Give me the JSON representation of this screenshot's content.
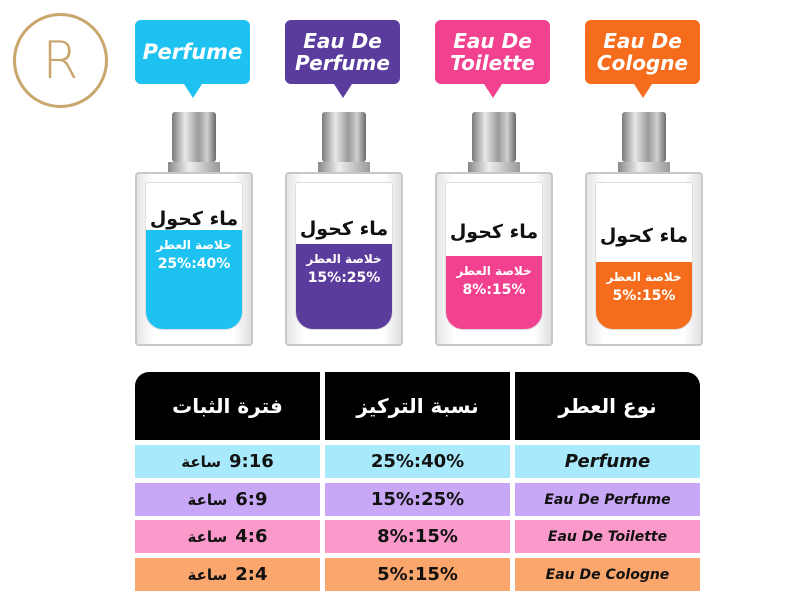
{
  "logo": {
    "letter": "R",
    "color": "#c9a66b"
  },
  "bottles": [
    {
      "type": "Perfume",
      "color": "#1ec2f0",
      "alcohol": "ماء كحول",
      "essence": "خلاصة العطر",
      "percent": "25%:40%",
      "fill": 0.4
    },
    {
      "type": "Eau De Perfume",
      "color": "#5a3c9c",
      "alcohol": "ماء كحول",
      "essence": "خلاصة العطر",
      "percent": "15%:25%",
      "fill": 0.3
    },
    {
      "type": "Eau De Toilette",
      "color": "#f2428f",
      "alcohol": "ماء كحول",
      "essence": "خلاصة العطر",
      "percent": "8%:15%",
      "fill": 0.22
    },
    {
      "type": "Eau De Cologne",
      "color": "#f46c1c",
      "alcohol": "ماء كحول",
      "essence": "خلاصة العطر",
      "percent": "5%:15%",
      "fill": 0.18
    }
  ],
  "table": {
    "headers": [
      "نوع العطر",
      "نسبة التركيز",
      "فترة الثبات"
    ],
    "rows": [
      {
        "type": "Perfume",
        "concentration": "25%:40%",
        "duration": "9:16",
        "unit": "ساعة",
        "color": "#a8e9fb"
      },
      {
        "type": "Eau De Perfume",
        "concentration": "15%:25%",
        "duration": "6:9",
        "unit": "ساعة",
        "color": "#c8a8f6"
      },
      {
        "type": "Eau De Toilette",
        "concentration": "8%:15%",
        "duration": "4:6",
        "unit": "ساعة",
        "color": "#fb9aca"
      },
      {
        "type": "Eau De Cologne",
        "concentration": "5%:15%",
        "duration": "2:4",
        "unit": "ساعة",
        "color": "#fba66c"
      }
    ]
  }
}
